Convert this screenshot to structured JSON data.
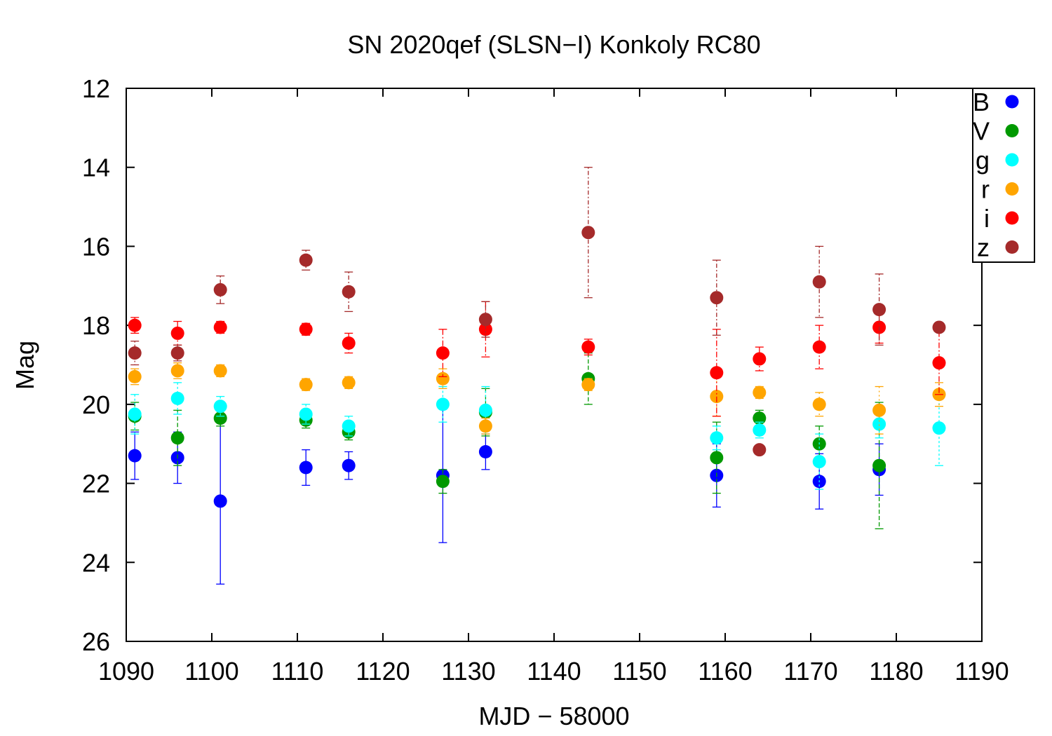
{
  "chart_data": {
    "type": "scatter",
    "title": "SN 2020qef (SLSN−I) Konkoly RC80",
    "xlabel": "MJD − 58000",
    "ylabel": "Mag",
    "xlim": [
      1090,
      1190
    ],
    "ylim": [
      12,
      26
    ],
    "y_inverted": true,
    "x_ticks": [
      "1090",
      "1100",
      "1110",
      "1120",
      "1130",
      "1140",
      "1150",
      "1160",
      "1170",
      "1180",
      "1190"
    ],
    "y_ticks": [
      "12",
      "14",
      "16",
      "18",
      "20",
      "22",
      "24",
      "26"
    ],
    "grid": false,
    "error_bars": true,
    "legend_position": "top-right",
    "series": [
      {
        "name": "B",
        "color": "#0000ff",
        "points": [
          {
            "x": 1091,
            "y": 21.3,
            "err": 0.6
          },
          {
            "x": 1096,
            "y": 21.35,
            "err": 0.65
          },
          {
            "x": 1101,
            "y": 22.45,
            "err": 2.1
          },
          {
            "x": 1111,
            "y": 21.6,
            "err": 0.45
          },
          {
            "x": 1116,
            "y": 21.55,
            "err": 0.35
          },
          {
            "x": 1127,
            "y": 21.8,
            "err": 1.7
          },
          {
            "x": 1132,
            "y": 21.2,
            "err": 0.45
          },
          {
            "x": 1159,
            "y": 21.8,
            "err": 0.8
          },
          {
            "x": 1171,
            "y": 21.95,
            "err": 0.7
          },
          {
            "x": 1178,
            "y": 21.65,
            "err": 0.65
          }
        ]
      },
      {
        "name": "V",
        "color": "#009900",
        "points": [
          {
            "x": 1091,
            "y": 20.3,
            "err": 0.35
          },
          {
            "x": 1096,
            "y": 20.85,
            "err": 0.7
          },
          {
            "x": 1101,
            "y": 20.35,
            "err": 0.2
          },
          {
            "x": 1111,
            "y": 20.4,
            "err": 0.2
          },
          {
            "x": 1116,
            "y": 20.7,
            "err": 0.2
          },
          {
            "x": 1127,
            "y": 21.95,
            "err": 0.3
          },
          {
            "x": 1132,
            "y": 20.2,
            "err": 0.6
          },
          {
            "x": 1144,
            "y": 19.35,
            "err": 0.65
          },
          {
            "x": 1159,
            "y": 21.35,
            "err": 0.9
          },
          {
            "x": 1164,
            "y": 20.35,
            "err": 0.2
          },
          {
            "x": 1171,
            "y": 21.0,
            "err": 0.45
          },
          {
            "x": 1178,
            "y": 21.55,
            "err": 1.6
          }
        ]
      },
      {
        "name": "g",
        "color": "#00ffff",
        "points": [
          {
            "x": 1091,
            "y": 20.25,
            "err": 0.5
          },
          {
            "x": 1096,
            "y": 19.85,
            "err": 0.4
          },
          {
            "x": 1101,
            "y": 20.05,
            "err": 0.25
          },
          {
            "x": 1111,
            "y": 20.25,
            "err": 0.25
          },
          {
            "x": 1116,
            "y": 20.55,
            "err": 0.25
          },
          {
            "x": 1127,
            "y": 20.0,
            "err": 0.45
          },
          {
            "x": 1132,
            "y": 20.15,
            "err": 0.6
          },
          {
            "x": 1159,
            "y": 20.85,
            "err": 0.3
          },
          {
            "x": 1164,
            "y": 20.65,
            "err": 0.2
          },
          {
            "x": 1171,
            "y": 21.45,
            "err": 0.7
          },
          {
            "x": 1178,
            "y": 20.5,
            "err": 0.35
          },
          {
            "x": 1185,
            "y": 20.6,
            "err": 0.95
          }
        ]
      },
      {
        "name": "r",
        "color": "#ffa500",
        "points": [
          {
            "x": 1091,
            "y": 19.3,
            "err": 0.2
          },
          {
            "x": 1096,
            "y": 19.15,
            "err": 0.2
          },
          {
            "x": 1101,
            "y": 19.15,
            "err": 0.15
          },
          {
            "x": 1111,
            "y": 19.5,
            "err": 0.15
          },
          {
            "x": 1116,
            "y": 19.45,
            "err": 0.15
          },
          {
            "x": 1127,
            "y": 19.35,
            "err": 0.25
          },
          {
            "x": 1132,
            "y": 20.55,
            "err": 0.2
          },
          {
            "x": 1144,
            "y": 19.5,
            "err": 0.15
          },
          {
            "x": 1159,
            "y": 19.8,
            "err": 0.5
          },
          {
            "x": 1164,
            "y": 19.7,
            "err": 0.15
          },
          {
            "x": 1171,
            "y": 20.0,
            "err": 0.3
          },
          {
            "x": 1178,
            "y": 20.15,
            "err": 0.6
          },
          {
            "x": 1185,
            "y": 19.75,
            "err": 0.3
          }
        ]
      },
      {
        "name": "i",
        "color": "#ff0000",
        "points": [
          {
            "x": 1091,
            "y": 18.0,
            "err": 0.2
          },
          {
            "x": 1096,
            "y": 18.2,
            "err": 0.3
          },
          {
            "x": 1101,
            "y": 18.05,
            "err": 0.15
          },
          {
            "x": 1111,
            "y": 18.1,
            "err": 0.15
          },
          {
            "x": 1116,
            "y": 18.45,
            "err": 0.25
          },
          {
            "x": 1127,
            "y": 18.7,
            "err": 0.6
          },
          {
            "x": 1132,
            "y": 18.1,
            "err": 0.7
          },
          {
            "x": 1144,
            "y": 18.55,
            "err": 0.2
          },
          {
            "x": 1159,
            "y": 19.2,
            "err": 1.1
          },
          {
            "x": 1164,
            "y": 18.85,
            "err": 0.3
          },
          {
            "x": 1171,
            "y": 18.55,
            "err": 0.55
          },
          {
            "x": 1178,
            "y": 18.05,
            "err": 0.4
          },
          {
            "x": 1185,
            "y": 18.95,
            "err": 0.8
          }
        ]
      },
      {
        "name": "z",
        "color": "#a52a2a",
        "points": [
          {
            "x": 1091,
            "y": 18.7,
            "err": 0.3
          },
          {
            "x": 1096,
            "y": 18.7,
            "err": 0.2
          },
          {
            "x": 1101,
            "y": 17.1,
            "err": 0.35
          },
          {
            "x": 1111,
            "y": 16.35,
            "err": 0.25
          },
          {
            "x": 1116,
            "y": 17.15,
            "err": 0.5
          },
          {
            "x": 1132,
            "y": 17.85,
            "err": 0.45
          },
          {
            "x": 1144,
            "y": 15.65,
            "err": 1.65
          },
          {
            "x": 1159,
            "y": 17.3,
            "err": 0.95
          },
          {
            "x": 1164,
            "y": 21.15,
            "err": 0.0
          },
          {
            "x": 1171,
            "y": 16.9,
            "err": 0.9
          },
          {
            "x": 1178,
            "y": 17.6,
            "err": 0.9
          },
          {
            "x": 1185,
            "y": 18.05,
            "err": 0.0
          }
        ]
      }
    ]
  }
}
